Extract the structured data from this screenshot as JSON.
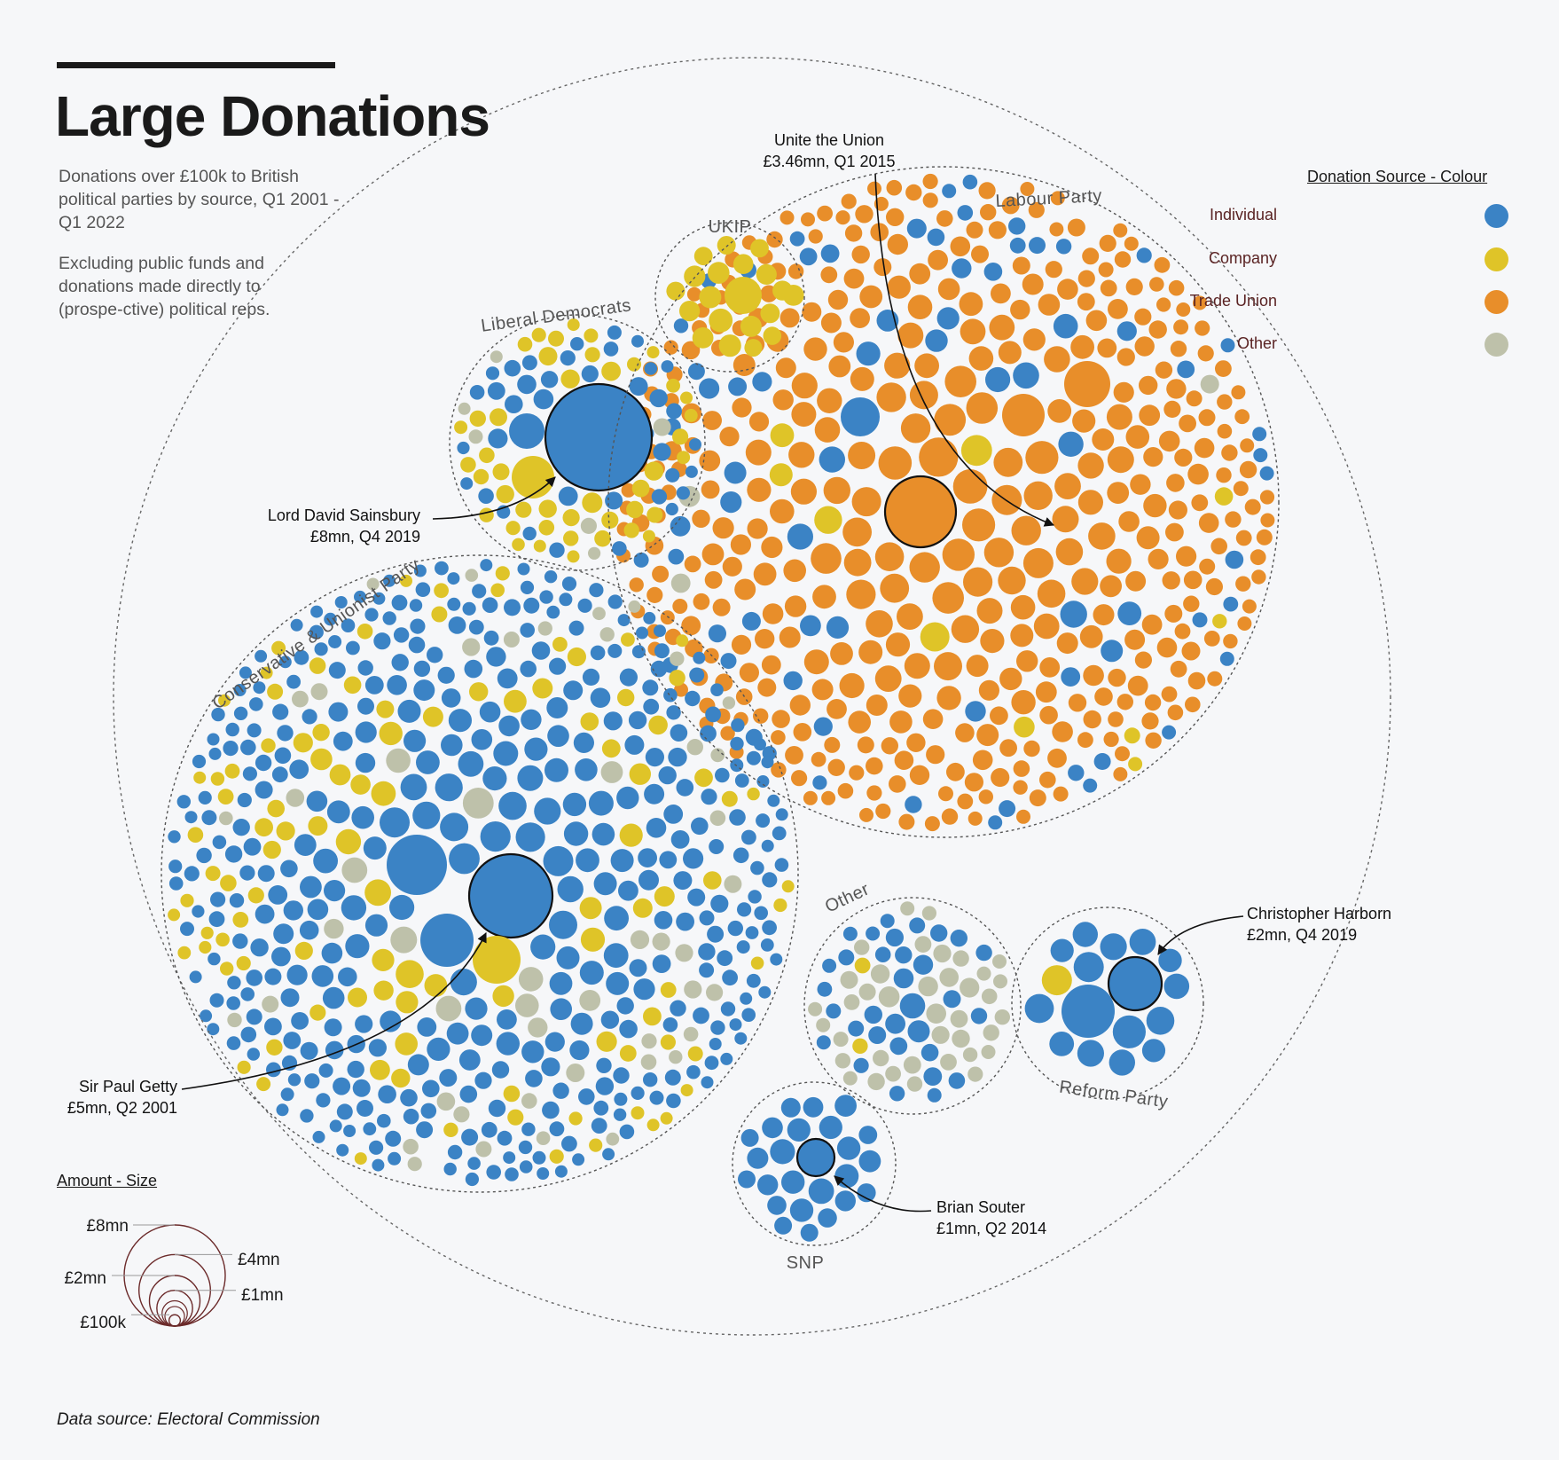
{
  "header": {
    "title": "Large Donations",
    "subtitle": "Donations over £100k to British political parties by source, Q1 2001 - Q1 2022",
    "note": "Excluding public funds and donations made directly to (prospe-ctive) political reps.",
    "source": "Data source: Electoral Commission"
  },
  "colors": {
    "Individual": "#3b83c5",
    "Company": "#dfc428",
    "Trade Union": "#e88e2a",
    "Other": "#bec1aa",
    "background": "#f6f7f9"
  },
  "legend": {
    "title": "Donation Source - Colour",
    "items": [
      "Individual",
      "Company",
      "Trade Union",
      "Other"
    ]
  },
  "size_legend": {
    "title": "Amount - Size",
    "labels": [
      "£8mn",
      "£4mn",
      "£2mn",
      "£1mn",
      "£100k"
    ],
    "values_mn": [
      8,
      4,
      2,
      1,
      0.1
    ]
  },
  "chart_data": {
    "type": "packed-bubble",
    "size_encodes": "donation amount",
    "colour_encodes": "donation source",
    "groups": [
      {
        "name": "Labour Party",
        "approx_bubbles": {
          "Trade Union": 560,
          "Individual": 95,
          "Company": 12,
          "Other": 6
        }
      },
      {
        "name": "Conservative & Unionist Party",
        "approx_bubbles": {
          "Individual": 600,
          "Company": 150,
          "Other": 70
        }
      },
      {
        "name": "Liberal Democrats",
        "approx_bubbles": {
          "Individual": 38,
          "Company": 45,
          "Other": 6
        }
      },
      {
        "name": "UKIP",
        "approx_bubbles": {
          "Company": 18
        }
      },
      {
        "name": "Other",
        "approx_bubbles": {
          "Individual": 32,
          "Other": 38,
          "Company": 2
        }
      },
      {
        "name": "Reform Party",
        "approx_bubbles": {
          "Individual": 14,
          "Company": 1
        }
      },
      {
        "name": "SNP",
        "approx_bubbles": {
          "Individual": 27
        }
      }
    ],
    "annotations": [
      {
        "name": "Unite the Union",
        "detail": "£3.46mn, Q1 2015",
        "party": "Labour Party",
        "source": "Trade Union",
        "amount_mn": 3.46
      },
      {
        "name": "Lord David Sainsbury",
        "detail": "£8mn, Q4 2019",
        "party": "Liberal Democrats",
        "source": "Individual",
        "amount_mn": 8
      },
      {
        "name": "Sir Paul Getty",
        "detail": "£5mn, Q2 2001",
        "party": "Conservative & Unionist Party",
        "source": "Individual",
        "amount_mn": 5
      },
      {
        "name": "Christopher Harborn",
        "detail": "£2mn, Q4 2019",
        "party": "Reform Party",
        "source": "Individual",
        "amount_mn": 2
      },
      {
        "name": "Brian Souter",
        "detail": "£1mn, Q2 2014",
        "party": "SNP",
        "source": "Individual",
        "amount_mn": 1
      }
    ]
  }
}
